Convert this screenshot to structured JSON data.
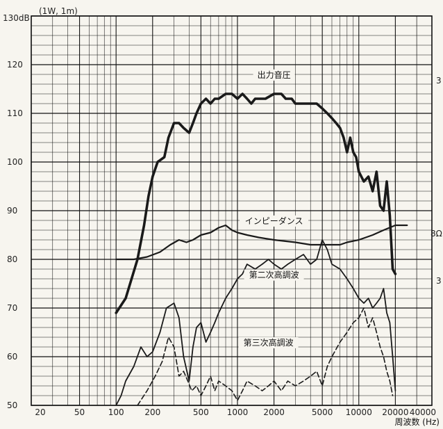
{
  "chart_data": {
    "type": "line",
    "xscale": "log",
    "xlim": [
      20,
      40000
    ],
    "ylim": [
      50,
      130
    ],
    "grid": true,
    "y_top_label": "130dB",
    "y_tick_labels": [
      "120",
      "110",
      "100",
      "90",
      "80",
      "70",
      "60",
      "50"
    ],
    "x_tick_labels": [
      "20",
      "50",
      "100",
      "200",
      "500",
      "1000",
      "2000",
      "5000",
      "10000",
      "20000",
      "40000"
    ],
    "condition": "(1W, 1m)",
    "xlabel": "周波数 (Hz)",
    "right_labels": [
      "3",
      "8Ω",
      "3"
    ],
    "series": [
      {
        "name": "出力音圧",
        "style": "solid-thick",
        "x": [
          100,
          120,
          150,
          170,
          185,
          200,
          220,
          250,
          270,
          300,
          330,
          360,
          400,
          430,
          460,
          500,
          550,
          600,
          650,
          700,
          800,
          900,
          1000,
          1100,
          1200,
          1300,
          1400,
          1500,
          1700,
          2000,
          2300,
          2500,
          2800,
          3000,
          3300,
          3600,
          4000,
          4500,
          5000,
          5500,
          6000,
          6500,
          7000,
          7500,
          8000,
          8500,
          9000,
          9500,
          10000,
          11000,
          12000,
          13000,
          14000,
          15000,
          16000,
          17000,
          18000,
          19000,
          20000
        ],
        "y": [
          69,
          72,
          80,
          87,
          93,
          97,
          100,
          101,
          105,
          108,
          108,
          107,
          106,
          108,
          110,
          112,
          113,
          112,
          113,
          113,
          114,
          114,
          113,
          114,
          113,
          112,
          113,
          113,
          113,
          114,
          114,
          113,
          113,
          112,
          112,
          112,
          112,
          112,
          111,
          110,
          109,
          108,
          107,
          105,
          102,
          105,
          102,
          101,
          98,
          96,
          97,
          94,
          98,
          91,
          90,
          96,
          89,
          78,
          77
        ]
      },
      {
        "name": "インピーダンス",
        "style": "solid",
        "x": [
          100,
          140,
          180,
          230,
          280,
          330,
          380,
          430,
          500,
          600,
          700,
          800,
          900,
          1000,
          1200,
          1500,
          2000,
          3000,
          4000,
          5000,
          6000,
          7000,
          8000,
          10000,
          13000,
          16000,
          20000,
          25000
        ],
        "y": [
          80,
          80,
          80.5,
          81.5,
          83,
          84,
          83.5,
          84,
          85,
          85.5,
          86.5,
          87,
          86,
          85.5,
          85,
          84.5,
          84,
          83.5,
          83,
          83,
          83,
          83,
          83.5,
          84,
          85,
          86,
          87,
          87
        ]
      },
      {
        "name": "第二次高調波",
        "style": "solid-thin",
        "x": [
          100,
          110,
          120,
          140,
          160,
          180,
          200,
          230,
          260,
          300,
          330,
          360,
          400,
          430,
          460,
          500,
          550,
          600,
          650,
          700,
          800,
          900,
          1000,
          1100,
          1200,
          1400,
          1600,
          1800,
          2000,
          2300,
          2600,
          3000,
          3500,
          4000,
          4500,
          5000,
          5500,
          6000,
          7000,
          8000,
          9000,
          10000,
          11000,
          12000,
          13000,
          14000,
          15000,
          16000,
          17000,
          18000,
          19000,
          20000
        ],
        "y": [
          50,
          52,
          55,
          58,
          62,
          60,
          61,
          65,
          70,
          71,
          68,
          60,
          55,
          62,
          66,
          67,
          63,
          65,
          67,
          69,
          72,
          74,
          76,
          77,
          79,
          78,
          79,
          80,
          79,
          78,
          79,
          80,
          81,
          79,
          80,
          84,
          82,
          79,
          78,
          76,
          74,
          72,
          71,
          72,
          70,
          71,
          72,
          74,
          69,
          67,
          60,
          53
        ]
      },
      {
        "name": "第三次高調波",
        "style": "dashed",
        "x": [
          150,
          180,
          210,
          240,
          270,
          300,
          330,
          360,
          390,
          420,
          460,
          500,
          550,
          600,
          650,
          700,
          800,
          900,
          1000,
          1100,
          1200,
          1400,
          1600,
          1800,
          2000,
          2300,
          2600,
          3000,
          3500,
          4000,
          4500,
          5000,
          5500,
          6000,
          7000,
          8000,
          9000,
          10000,
          11000,
          12000,
          13000,
          14000,
          15000,
          16000,
          17000,
          18000,
          19000
        ],
        "y": [
          50,
          53,
          56,
          59,
          64,
          62,
          56,
          57,
          55,
          53,
          54,
          52,
          54,
          56,
          53,
          55,
          54,
          53,
          51,
          53,
          55,
          54,
          53,
          54,
          55,
          53,
          55,
          54,
          55,
          56,
          57,
          54,
          58,
          60,
          63,
          65,
          67,
          68,
          70,
          66,
          68,
          65,
          62,
          60,
          57,
          55,
          52
        ]
      }
    ]
  }
}
